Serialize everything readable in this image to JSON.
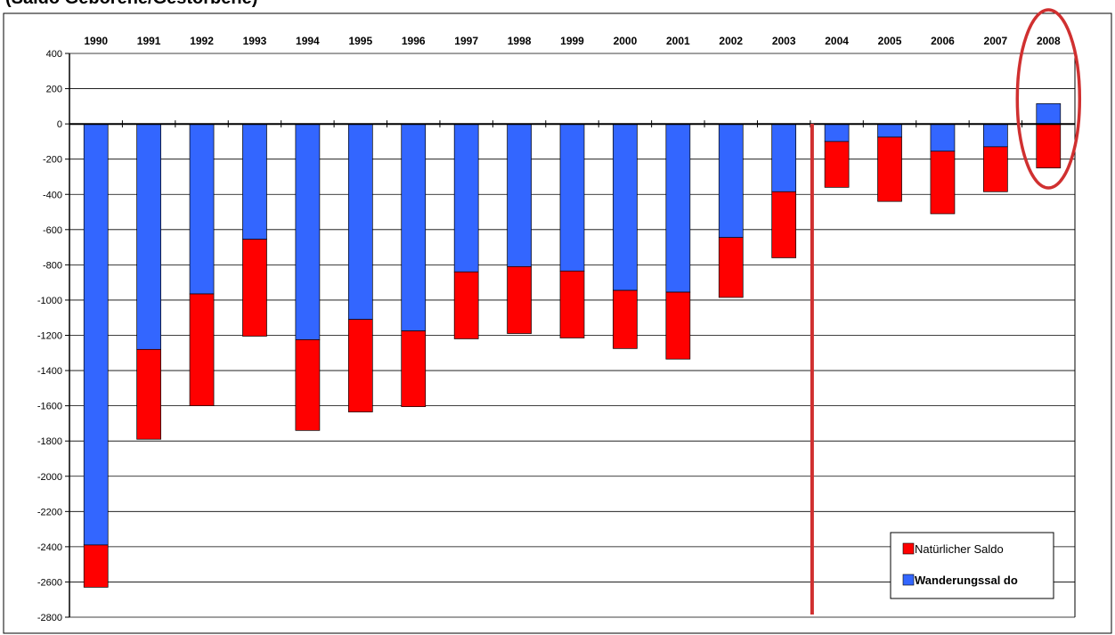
{
  "colors": {
    "natural": "#ff0000",
    "migration": "#3366ff",
    "highlight": "#d03030",
    "grid": "#000000"
  },
  "chart_data": {
    "type": "bar",
    "stacked": true,
    "title": "(Saldo Geborene/Gestorbene)",
    "categories": [
      "1990",
      "1991",
      "1992",
      "1993",
      "1994",
      "1995",
      "1996",
      "1997",
      "1998",
      "1999",
      "2000",
      "2001",
      "2002",
      "2003",
      "2004",
      "2005",
      "2006",
      "2007",
      "2008"
    ],
    "series": [
      {
        "name": "Wanderungssal do",
        "color": "#3366ff",
        "values": [
          -2390,
          -1280,
          -965,
          -655,
          -1225,
          -1110,
          -1175,
          -840,
          -810,
          -835,
          -945,
          -955,
          -645,
          -385,
          -100,
          -75,
          -155,
          -130,
          115
        ]
      },
      {
        "name": "Natürlicher Saldo",
        "color": "#ff0000",
        "values": [
          -240,
          -510,
          -635,
          -550,
          -515,
          -525,
          -430,
          -380,
          -380,
          -380,
          -330,
          -380,
          -340,
          -375,
          -260,
          -365,
          -355,
          -255,
          -250
        ]
      }
    ],
    "ylim": [
      -2800,
      400
    ],
    "yticks": [
      "400",
      "200",
      "0",
      "-200",
      "-400",
      "-600",
      "-800",
      "-1000",
      "-1200",
      "-1400",
      "-1600",
      "-1800",
      "-2000",
      "-2200",
      "-2400",
      "-2600",
      "-2800"
    ],
    "grid": true,
    "x_axis_labels_position": "top",
    "legend_position": "bottom-right",
    "divider_after_category": "2003",
    "highlighted_category": "2008"
  }
}
